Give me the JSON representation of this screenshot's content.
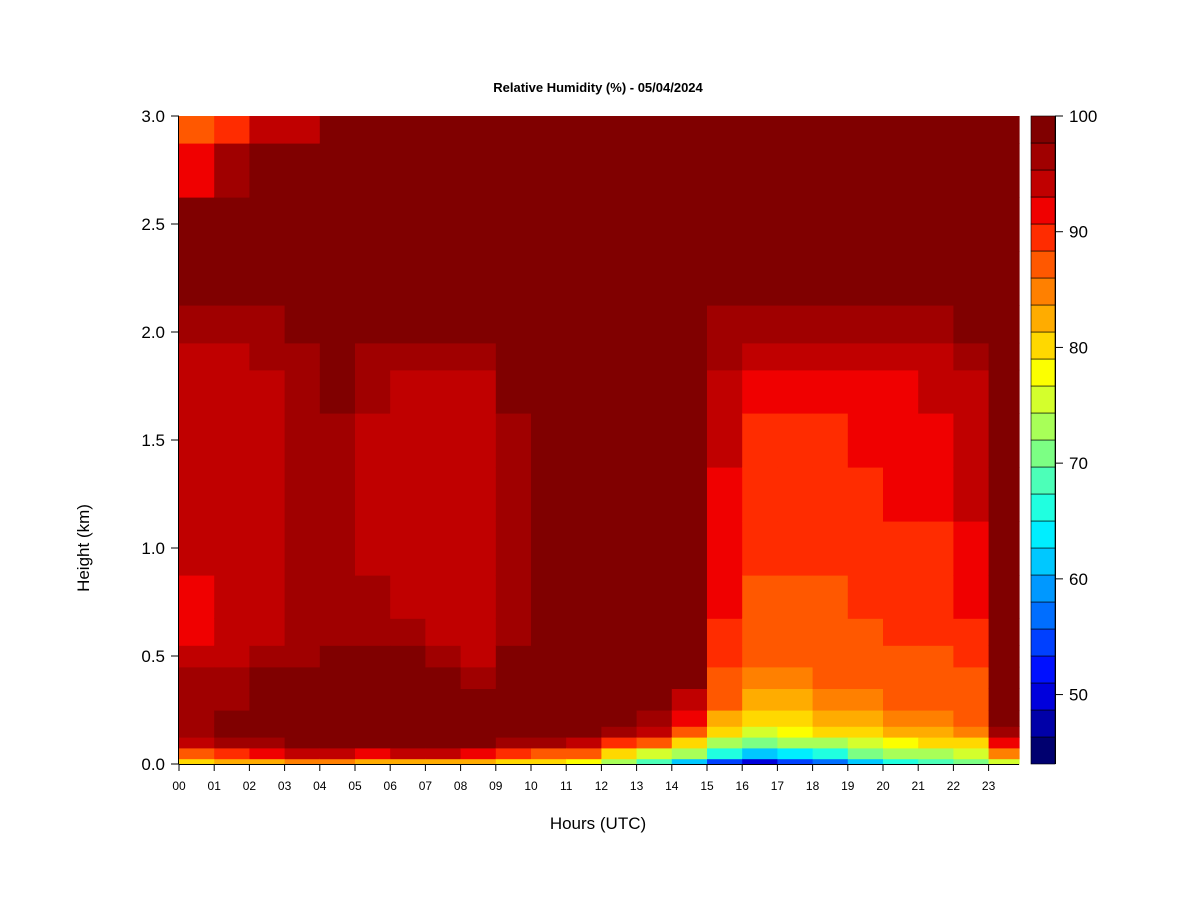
{
  "chart_data": {
    "type": "heatmap",
    "title": "Relative Humidity (%) - 05/04/2024",
    "xlabel": "Hours (UTC)",
    "ylabel": "Height (km)",
    "x_ticks": [
      "00",
      "01",
      "02",
      "03",
      "04",
      "05",
      "06",
      "07",
      "08",
      "09",
      "10",
      "11",
      "12",
      "13",
      "14",
      "15",
      "16",
      "17",
      "18",
      "19",
      "20",
      "21",
      "22",
      "23"
    ],
    "xlim": [
      0,
      23.9
    ],
    "y_ticks": [
      "0.0",
      "0.5",
      "1.0",
      "1.5",
      "2.0",
      "2.5",
      "3.0"
    ],
    "ylim": [
      0,
      3
    ],
    "colorbar": {
      "ticks": [
        "50",
        "60",
        "70",
        "80",
        "90",
        "100"
      ],
      "range": [
        44,
        100
      ],
      "colors": [
        "#00006f",
        "#0000a8",
        "#0000dc",
        "#0010ff",
        "#0040ff",
        "#006eff",
        "#0098ff",
        "#00c8ff",
        "#00eeff",
        "#20ffe0",
        "#4cffb8",
        "#7cff84",
        "#a8ff58",
        "#d4ff2c",
        "#fcff00",
        "#ffd800",
        "#ffac00",
        "#ff8000",
        "#ff5800",
        "#ff2c00",
        "#f00000",
        "#c00000",
        "#a00000",
        "#800000"
      ]
    },
    "heights_km": [
      0.0,
      0.05,
      0.1,
      0.15,
      0.2,
      0.3,
      0.4,
      0.5,
      0.6,
      0.75,
      1.0,
      1.25,
      1.5,
      1.75,
      1.9,
      2.0,
      2.25,
      2.5,
      2.75,
      3.0
    ],
    "hours": [
      0,
      1,
      2,
      3,
      4,
      5,
      6,
      7,
      8,
      9,
      10,
      11,
      12,
      13,
      14,
      15,
      16,
      17,
      18,
      19,
      20,
      21,
      22,
      23
    ],
    "rh_percent": [
      [
        80,
        88,
        93,
        96,
        97,
        97,
        96,
        93,
        92,
        92,
        93,
        93,
        93,
        94,
        94,
        96,
        100,
        100,
        92,
        86
      ],
      [
        83,
        90,
        96,
        98,
        98,
        97,
        96,
        95,
        95,
        94,
        94,
        94,
        93,
        94,
        95,
        97,
        100,
        100,
        96,
        90
      ],
      [
        83,
        91,
        97,
        99,
        99,
        98,
        98,
        96,
        95,
        95,
        95,
        95,
        95,
        95,
        96,
        97,
        100,
        100,
        98,
        94
      ],
      [
        84,
        93,
        98,
        100,
        100,
        100,
        98,
        97,
        96,
        96,
        96,
        96,
        96,
        96,
        97,
        98,
        100,
        100,
        99,
        95
      ],
      [
        84,
        93,
        98,
        100,
        100,
        100,
        99,
        98,
        97,
        97,
        97,
        97,
        97,
        98,
        98,
        100,
        100,
        100,
        100,
        100
      ],
      [
        82,
        92,
        98,
        100,
        100,
        100,
        100,
        98,
        96,
        96,
        95,
        95,
        95,
        96,
        97,
        100,
        100,
        100,
        100,
        100
      ],
      [
        82,
        93,
        98,
        100,
        100,
        100,
        100,
        98,
        96,
        95,
        94,
        94,
        94,
        95,
        97,
        100,
        100,
        100,
        100,
        100
      ],
      [
        82,
        93,
        98,
        100,
        100,
        100,
        99,
        96,
        94,
        93,
        93,
        93,
        93,
        94,
        96,
        100,
        100,
        100,
        100,
        100
      ],
      [
        82,
        92,
        98,
        100,
        100,
        99,
        97,
        95,
        94,
        93,
        93,
        93,
        93,
        94,
        96,
        100,
        100,
        100,
        100,
        100
      ],
      [
        80,
        90,
        97,
        100,
        100,
        100,
        100,
        99,
        97,
        96,
        96,
        96,
        97,
        98,
        100,
        100,
        100,
        100,
        100,
        100
      ],
      [
        80,
        88,
        96,
        100,
        100,
        100,
        100,
        100,
        100,
        100,
        100,
        100,
        100,
        100,
        100,
        100,
        100,
        100,
        100,
        100
      ],
      [
        78,
        86,
        95,
        99,
        100,
        100,
        100,
        100,
        100,
        100,
        100,
        100,
        100,
        100,
        100,
        100,
        100,
        100,
        100,
        100
      ],
      [
        73,
        80,
        90,
        96,
        99,
        100,
        100,
        100,
        100,
        100,
        100,
        100,
        100,
        100,
        100,
        100,
        100,
        100,
        100,
        100
      ],
      [
        68,
        76,
        86,
        93,
        97,
        100,
        100,
        100,
        100,
        100,
        100,
        100,
        100,
        100,
        100,
        100,
        100,
        100,
        100,
        100
      ],
      [
        62,
        72,
        80,
        87,
        91,
        95,
        98,
        98,
        98,
        98,
        98,
        98,
        99,
        99,
        99,
        100,
        100,
        100,
        100,
        100
      ],
      [
        55,
        66,
        74,
        80,
        83,
        86,
        88,
        89,
        90,
        91,
        91,
        92,
        93,
        94,
        96,
        97,
        99,
        100,
        100,
        100
      ],
      [
        50,
        62,
        70,
        76,
        79,
        82,
        84,
        86,
        87,
        88,
        89,
        89,
        90,
        91,
        94,
        96,
        99,
        100,
        100,
        100
      ],
      [
        54,
        64,
        72,
        78,
        81,
        83,
        85,
        86,
        87,
        88,
        89,
        89,
        90,
        91,
        94,
        96,
        99,
        100,
        100,
        100
      ],
      [
        57,
        66,
        74,
        79,
        82,
        84,
        86,
        87,
        88,
        88,
        89,
        90,
        90,
        91,
        94,
        96,
        99,
        100,
        100,
        100
      ],
      [
        62,
        70,
        76,
        80,
        82,
        84,
        86,
        87,
        88,
        89,
        89,
        90,
        91,
        92,
        95,
        97,
        99,
        100,
        100,
        100
      ],
      [
        66,
        72,
        78,
        82,
        84,
        86,
        87,
        88,
        89,
        89,
        90,
        91,
        91,
        92,
        95,
        97,
        99,
        100,
        100,
        100
      ],
      [
        68,
        74,
        79,
        82,
        84,
        86,
        87,
        88,
        89,
        90,
        90,
        91,
        92,
        93,
        95,
        97,
        99,
        100,
        100,
        100
      ],
      [
        70,
        76,
        81,
        84,
        86,
        87,
        88,
        89,
        90,
        91,
        92,
        93,
        94,
        95,
        97,
        98,
        100,
        100,
        100,
        100
      ],
      [
        76,
        84,
        92,
        97,
        99,
        100,
        100,
        100,
        100,
        100,
        100,
        100,
        100,
        100,
        100,
        100,
        100,
        100,
        100,
        100
      ]
    ]
  }
}
